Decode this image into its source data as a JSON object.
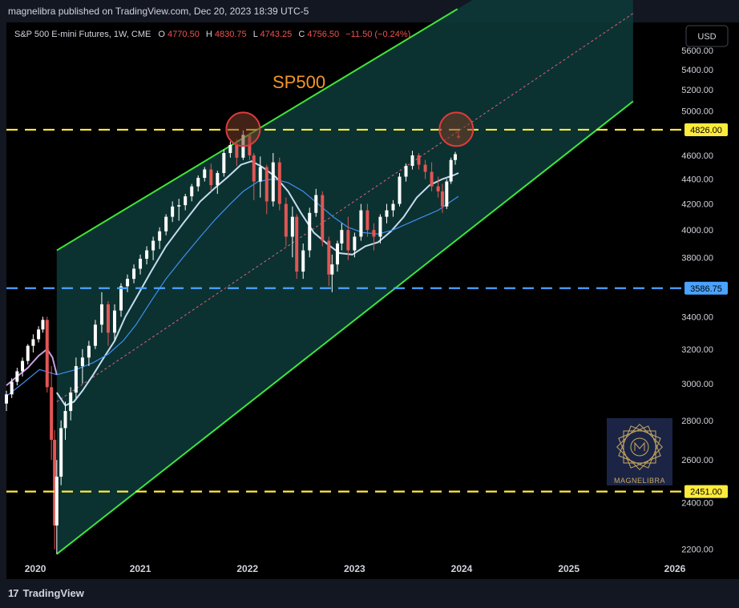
{
  "publisher_line": "magnelibra published on TradingView.com, Dec 20, 2023 18:39 UTC-5",
  "currency_button": "USD",
  "header": {
    "symbol": "S&P 500 E-mini Futures, 1W, CME",
    "o_label": "O",
    "o_value": "4770.50",
    "h_label": "H",
    "h_value": "4830.75",
    "l_label": "L",
    "l_value": "4743.25",
    "c_label": "C",
    "c_value": "4756.50",
    "change": "−11.50 (−0.24%)"
  },
  "annotation_title": "SP500",
  "logo_text": "MAGNELIBRA",
  "footer_brand": "TradingView",
  "footer_logo_mark": "17",
  "colors": {
    "background": "#000000",
    "channel_fill": "#0d3b38",
    "channel_lines": "#3fe43b",
    "resistance": "#ffeb3b",
    "support_blue": "#4aa3ff",
    "ma_fast": "#c6dcf0",
    "ma_slow": "#3f8ef0",
    "ma_pre": "#c79fe0",
    "candle_up": "#ffffff",
    "candle_down": "#e45555",
    "circle": "#e03b3b",
    "title_orange": "#f5962b"
  },
  "chart_data": {
    "type": "candlestick",
    "timeframe": "1W",
    "y_axis": {
      "scale": "log",
      "ticks": [
        "5600.00",
        "5400.00",
        "5200.00",
        "5000.00",
        "4600.00",
        "4400.00",
        "4200.00",
        "4000.00",
        "3800.00",
        "3400.00",
        "3200.00",
        "3000.00",
        "2800.00",
        "2600.00",
        "2400.00",
        "2200.00"
      ],
      "range": [
        2080,
        5900
      ]
    },
    "x_axis": {
      "ticks": [
        "2020",
        "2021",
        "2022",
        "2023",
        "2024",
        "2025",
        "2026"
      ],
      "range": [
        2019.75,
        2026.05
      ]
    },
    "horizontal_levels": [
      {
        "price": 4826.0,
        "label": "4826.00",
        "style": "dashed",
        "color": "#ffeb3b"
      },
      {
        "price": 3586.75,
        "label": "3586.75",
        "style": "dashed",
        "color": "#4aa3ff"
      },
      {
        "price": 2451.0,
        "label": "2451.00",
        "style": "dashed",
        "color": "#ffeb3b"
      }
    ],
    "channel": {
      "upper": [
        [
          2020.22,
          3850
        ],
        [
          2021.96,
          4830
        ],
        [
          2023.96,
          6050
        ]
      ],
      "lower": [
        [
          2020.22,
          2180
        ],
        [
          2022.79,
          3560
        ],
        [
          2025.6,
          5090
        ]
      ],
      "midline": [
        [
          2020.22,
          2900
        ],
        [
          2025.6,
          6000
        ]
      ],
      "end": 2025.6
    },
    "circles": [
      {
        "x": 2021.96,
        "price": 4830
      },
      {
        "x": 2023.95,
        "price": 4830
      }
    ],
    "candles": [
      {
        "x": 2019.75,
        "o": 2890,
        "h": 2960,
        "l": 2850,
        "c": 2940
      },
      {
        "x": 2019.8,
        "o": 2940,
        "h": 3030,
        "l": 2920,
        "c": 3010
      },
      {
        "x": 2019.85,
        "o": 3010,
        "h": 3090,
        "l": 2990,
        "c": 3070
      },
      {
        "x": 2019.9,
        "o": 3070,
        "h": 3150,
        "l": 3040,
        "c": 3130
      },
      {
        "x": 2019.95,
        "o": 3130,
        "h": 3230,
        "l": 3110,
        "c": 3220
      },
      {
        "x": 2020.0,
        "o": 3220,
        "h": 3290,
        "l": 3180,
        "c": 3260
      },
      {
        "x": 2020.05,
        "o": 3260,
        "h": 3340,
        "l": 3240,
        "c": 3320
      },
      {
        "x": 2020.09,
        "o": 3320,
        "h": 3400,
        "l": 3300,
        "c": 3380
      },
      {
        "x": 2020.13,
        "o": 3380,
        "h": 3400,
        "l": 2950,
        "c": 2980
      },
      {
        "x": 2020.17,
        "o": 2980,
        "h": 3100,
        "l": 2600,
        "c": 2700
      },
      {
        "x": 2020.2,
        "o": 2700,
        "h": 2750,
        "l": 2200,
        "c": 2300
      },
      {
        "x": 2020.22,
        "o": 2300,
        "h": 2600,
        "l": 2180,
        "c": 2520
      },
      {
        "x": 2020.26,
        "o": 2520,
        "h": 2800,
        "l": 2480,
        "c": 2760
      },
      {
        "x": 2020.3,
        "o": 2760,
        "h": 2900,
        "l": 2700,
        "c": 2850
      },
      {
        "x": 2020.35,
        "o": 2850,
        "h": 2980,
        "l": 2800,
        "c": 2950
      },
      {
        "x": 2020.4,
        "o": 2950,
        "h": 3150,
        "l": 2920,
        "c": 3100
      },
      {
        "x": 2020.46,
        "o": 3100,
        "h": 3200,
        "l": 3000,
        "c": 3150
      },
      {
        "x": 2020.52,
        "o": 3150,
        "h": 3250,
        "l": 3100,
        "c": 3220
      },
      {
        "x": 2020.58,
        "o": 3220,
        "h": 3380,
        "l": 3200,
        "c": 3350
      },
      {
        "x": 2020.64,
        "o": 3350,
        "h": 3560,
        "l": 3300,
        "c": 3480
      },
      {
        "x": 2020.7,
        "o": 3480,
        "h": 3500,
        "l": 3220,
        "c": 3300
      },
      {
        "x": 2020.76,
        "o": 3300,
        "h": 3480,
        "l": 3250,
        "c": 3440
      },
      {
        "x": 2020.82,
        "o": 3440,
        "h": 3620,
        "l": 3400,
        "c": 3600
      },
      {
        "x": 2020.88,
        "o": 3600,
        "h": 3680,
        "l": 3560,
        "c": 3650
      },
      {
        "x": 2020.94,
        "o": 3650,
        "h": 3750,
        "l": 3620,
        "c": 3720
      },
      {
        "x": 2021.0,
        "o": 3720,
        "h": 3820,
        "l": 3680,
        "c": 3790
      },
      {
        "x": 2021.06,
        "o": 3790,
        "h": 3880,
        "l": 3750,
        "c": 3850
      },
      {
        "x": 2021.12,
        "o": 3850,
        "h": 3950,
        "l": 3780,
        "c": 3920
      },
      {
        "x": 2021.18,
        "o": 3920,
        "h": 4020,
        "l": 3860,
        "c": 3990
      },
      {
        "x": 2021.24,
        "o": 3990,
        "h": 4120,
        "l": 3960,
        "c": 4100
      },
      {
        "x": 2021.3,
        "o": 4100,
        "h": 4220,
        "l": 4060,
        "c": 4180
      },
      {
        "x": 2021.36,
        "o": 4180,
        "h": 4240,
        "l": 4070,
        "c": 4190
      },
      {
        "x": 2021.42,
        "o": 4190,
        "h": 4280,
        "l": 4150,
        "c": 4260
      },
      {
        "x": 2021.48,
        "o": 4260,
        "h": 4360,
        "l": 4220,
        "c": 4340
      },
      {
        "x": 2021.54,
        "o": 4340,
        "h": 4430,
        "l": 4300,
        "c": 4410
      },
      {
        "x": 2021.6,
        "o": 4410,
        "h": 4500,
        "l": 4380,
        "c": 4480
      },
      {
        "x": 2021.66,
        "o": 4480,
        "h": 4530,
        "l": 4300,
        "c": 4350
      },
      {
        "x": 2021.72,
        "o": 4350,
        "h": 4470,
        "l": 4280,
        "c": 4450
      },
      {
        "x": 2021.78,
        "o": 4450,
        "h": 4650,
        "l": 4420,
        "c": 4620
      },
      {
        "x": 2021.84,
        "o": 4620,
        "h": 4720,
        "l": 4580,
        "c": 4690
      },
      {
        "x": 2021.9,
        "o": 4690,
        "h": 4740,
        "l": 4510,
        "c": 4580
      },
      {
        "x": 2021.96,
        "o": 4580,
        "h": 4820,
        "l": 4560,
        "c": 4780
      },
      {
        "x": 2022.02,
        "o": 4780,
        "h": 4800,
        "l": 4560,
        "c": 4600
      },
      {
        "x": 2022.06,
        "o": 4600,
        "h": 4620,
        "l": 4230,
        "c": 4380
      },
      {
        "x": 2022.12,
        "o": 4380,
        "h": 4590,
        "l": 4250,
        "c": 4500
      },
      {
        "x": 2022.18,
        "o": 4500,
        "h": 4520,
        "l": 4120,
        "c": 4220
      },
      {
        "x": 2022.24,
        "o": 4220,
        "h": 4620,
        "l": 4180,
        "c": 4540
      },
      {
        "x": 2022.3,
        "o": 4540,
        "h": 4580,
        "l": 4150,
        "c": 4200
      },
      {
        "x": 2022.36,
        "o": 4200,
        "h": 4250,
        "l": 3880,
        "c": 3950
      },
      {
        "x": 2022.42,
        "o": 3950,
        "h": 4180,
        "l": 3800,
        "c": 4100
      },
      {
        "x": 2022.46,
        "o": 4100,
        "h": 4120,
        "l": 3650,
        "c": 3700
      },
      {
        "x": 2022.52,
        "o": 3700,
        "h": 3900,
        "l": 3650,
        "c": 3850
      },
      {
        "x": 2022.58,
        "o": 3850,
        "h": 4170,
        "l": 3800,
        "c": 4130
      },
      {
        "x": 2022.64,
        "o": 4130,
        "h": 4320,
        "l": 4100,
        "c": 4270
      },
      {
        "x": 2022.7,
        "o": 4270,
        "h": 4300,
        "l": 3880,
        "c": 3920
      },
      {
        "x": 2022.76,
        "o": 3920,
        "h": 3950,
        "l": 3600,
        "c": 3680
      },
      {
        "x": 2022.79,
        "o": 3680,
        "h": 3820,
        "l": 3560,
        "c": 3750
      },
      {
        "x": 2022.84,
        "o": 3750,
        "h": 3920,
        "l": 3700,
        "c": 3900
      },
      {
        "x": 2022.88,
        "o": 3900,
        "h": 4050,
        "l": 3850,
        "c": 4000
      },
      {
        "x": 2022.94,
        "o": 4000,
        "h": 4100,
        "l": 3780,
        "c": 3850
      },
      {
        "x": 2023.0,
        "o": 3850,
        "h": 3980,
        "l": 3800,
        "c": 3950
      },
      {
        "x": 2023.06,
        "o": 3950,
        "h": 4200,
        "l": 3920,
        "c": 4150
      },
      {
        "x": 2023.12,
        "o": 4150,
        "h": 4200,
        "l": 3950,
        "c": 4000
      },
      {
        "x": 2023.18,
        "o": 4000,
        "h": 4050,
        "l": 3850,
        "c": 3950
      },
      {
        "x": 2023.24,
        "o": 3950,
        "h": 4120,
        "l": 3900,
        "c": 4100
      },
      {
        "x": 2023.3,
        "o": 4100,
        "h": 4200,
        "l": 4050,
        "c": 4150
      },
      {
        "x": 2023.36,
        "o": 4150,
        "h": 4230,
        "l": 4100,
        "c": 4200
      },
      {
        "x": 2023.42,
        "o": 4200,
        "h": 4450,
        "l": 4180,
        "c": 4420
      },
      {
        "x": 2023.48,
        "o": 4420,
        "h": 4530,
        "l": 4380,
        "c": 4510
      },
      {
        "x": 2023.54,
        "o": 4510,
        "h": 4640,
        "l": 4480,
        "c": 4600
      },
      {
        "x": 2023.6,
        "o": 4600,
        "h": 4620,
        "l": 4480,
        "c": 4520
      },
      {
        "x": 2023.66,
        "o": 4520,
        "h": 4560,
        "l": 4400,
        "c": 4460
      },
      {
        "x": 2023.72,
        "o": 4460,
        "h": 4540,
        "l": 4300,
        "c": 4340
      },
      {
        "x": 2023.78,
        "o": 4340,
        "h": 4420,
        "l": 4250,
        "c": 4300
      },
      {
        "x": 2023.82,
        "o": 4300,
        "h": 4360,
        "l": 4130,
        "c": 4180
      },
      {
        "x": 2023.86,
        "o": 4180,
        "h": 4400,
        "l": 4160,
        "c": 4380
      },
      {
        "x": 2023.9,
        "o": 4380,
        "h": 4580,
        "l": 4360,
        "c": 4560
      },
      {
        "x": 2023.94,
        "o": 4560,
        "h": 4630,
        "l": 4520,
        "c": 4610
      },
      {
        "x": 2023.97,
        "o": 4770.5,
        "h": 4830.75,
        "l": 4743.25,
        "c": 4756.5
      }
    ],
    "moving_averages": [
      {
        "name": "ma_fast",
        "points": [
          [
            2020.22,
            2950
          ],
          [
            2020.3,
            2880
          ],
          [
            2020.38,
            2900
          ],
          [
            2020.46,
            2960
          ],
          [
            2020.56,
            3050
          ],
          [
            2020.66,
            3150
          ],
          [
            2020.76,
            3250
          ],
          [
            2020.86,
            3400
          ],
          [
            2020.96,
            3520
          ],
          [
            2021.1,
            3700
          ],
          [
            2021.24,
            3880
          ],
          [
            2021.4,
            4050
          ],
          [
            2021.56,
            4220
          ],
          [
            2021.7,
            4330
          ],
          [
            2021.82,
            4420
          ],
          [
            2021.94,
            4520
          ],
          [
            2022.04,
            4550
          ],
          [
            2022.14,
            4500
          ],
          [
            2022.26,
            4420
          ],
          [
            2022.38,
            4300
          ],
          [
            2022.5,
            4130
          ],
          [
            2022.62,
            3980
          ],
          [
            2022.74,
            3900
          ],
          [
            2022.86,
            3830
          ],
          [
            2022.98,
            3820
          ],
          [
            2023.1,
            3880
          ],
          [
            2023.22,
            3910
          ],
          [
            2023.34,
            3990
          ],
          [
            2023.46,
            4100
          ],
          [
            2023.58,
            4250
          ],
          [
            2023.7,
            4350
          ],
          [
            2023.82,
            4400
          ],
          [
            2023.92,
            4430
          ],
          [
            2023.97,
            4450
          ]
        ]
      },
      {
        "name": "ma_slow",
        "points": [
          [
            2019.75,
            2930
          ],
          [
            2019.9,
            3000
          ],
          [
            2020.06,
            3080
          ],
          [
            2020.22,
            3050
          ],
          [
            2020.4,
            3080
          ],
          [
            2020.56,
            3120
          ],
          [
            2020.7,
            3170
          ],
          [
            2020.84,
            3250
          ],
          [
            2020.96,
            3350
          ],
          [
            2021.1,
            3500
          ],
          [
            2021.24,
            3650
          ],
          [
            2021.4,
            3800
          ],
          [
            2021.56,
            3950
          ],
          [
            2021.7,
            4080
          ],
          [
            2021.84,
            4200
          ],
          [
            2021.96,
            4300
          ],
          [
            2022.1,
            4380
          ],
          [
            2022.24,
            4400
          ],
          [
            2022.38,
            4370
          ],
          [
            2022.52,
            4300
          ],
          [
            2022.66,
            4200
          ],
          [
            2022.8,
            4100
          ],
          [
            2022.94,
            4020
          ],
          [
            2023.08,
            3980
          ],
          [
            2023.22,
            3970
          ],
          [
            2023.36,
            4000
          ],
          [
            2023.5,
            4050
          ],
          [
            2023.64,
            4100
          ],
          [
            2023.78,
            4150
          ],
          [
            2023.9,
            4220
          ],
          [
            2023.97,
            4260
          ]
        ]
      },
      {
        "name": "ma_pre",
        "points": [
          [
            2019.75,
            2990
          ],
          [
            2019.85,
            3040
          ],
          [
            2019.95,
            3090
          ],
          [
            2020.05,
            3160
          ],
          [
            2020.13,
            3200
          ],
          [
            2020.18,
            3150
          ],
          [
            2020.22,
            3050
          ]
        ]
      }
    ]
  }
}
